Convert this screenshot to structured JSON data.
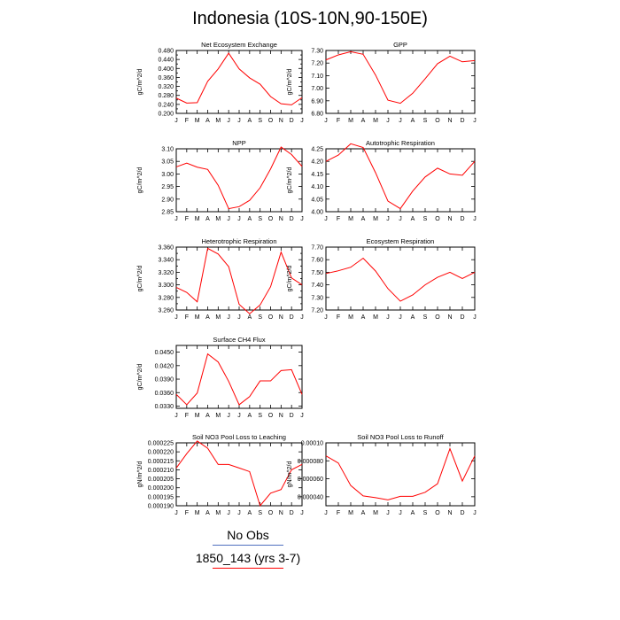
{
  "title": "Indonesia (10S-10N,90-150E)",
  "legend": {
    "entries": [
      {
        "label": "No Obs",
        "color": "#4f6fbf"
      },
      {
        "label": "1850_143 (yrs 3-7)",
        "color": "#ff0000"
      }
    ]
  },
  "months": [
    "J",
    "F",
    "M",
    "A",
    "M",
    "J",
    "J",
    "A",
    "S",
    "O",
    "N",
    "D",
    "J"
  ],
  "chart_data": [
    {
      "type": "line",
      "title": "Net Ecosystem Exchange",
      "ylabel": "gC/m^2/d",
      "ylim": [
        0.2,
        0.48
      ],
      "yticks": [
        "0.200",
        "0.220",
        "0.240",
        "0.260",
        "0.280",
        "0.300",
        "0.320",
        "0.340",
        "0.360",
        "0.380",
        "0.400",
        "0.420",
        "0.440",
        "0.460",
        "0.480"
      ],
      "ytick_values": [
        0.2,
        0.22,
        0.24,
        0.26,
        0.28,
        0.3,
        0.32,
        0.34,
        0.36,
        0.38,
        0.4,
        0.42,
        0.44,
        0.46,
        0.48
      ],
      "ytick_labeled": [
        true,
        false,
        true,
        false,
        true,
        false,
        true,
        false,
        true,
        false,
        true,
        false,
        true,
        false,
        true
      ],
      "series": [
        {
          "name": "1850_143 (yrs 3-7)",
          "color": "#ff0000",
          "values": [
            0.268,
            0.246,
            0.248,
            0.343,
            0.398,
            0.468,
            0.398,
            0.358,
            0.33,
            0.275,
            0.243,
            0.238,
            0.27
          ]
        }
      ]
    },
    {
      "type": "line",
      "title": "GPP",
      "ylabel": "gC/m^2/d",
      "ylim": [
        6.8,
        7.3
      ],
      "yticks": [
        "6.80",
        "6.90",
        "7.00",
        "7.10",
        "7.20",
        "7.30"
      ],
      "ytick_values": [
        6.8,
        6.9,
        7.0,
        7.1,
        7.2,
        7.3
      ],
      "ytick_labeled": [
        true,
        true,
        true,
        true,
        true,
        true
      ],
      "series": [
        {
          "name": "1850_143 (yrs 3-7)",
          "color": "#ff0000",
          "values": [
            7.225,
            7.265,
            7.29,
            7.27,
            7.105,
            6.905,
            6.88,
            6.96,
            7.075,
            7.195,
            7.255,
            7.21,
            7.22
          ]
        }
      ]
    },
    {
      "type": "line",
      "title": "NPP",
      "ylabel": "gC/m^2/d",
      "ylim": [
        2.85,
        3.1
      ],
      "yticks": [
        "2.85",
        "2.90",
        "2.95",
        "3.00",
        "3.05",
        "3.10"
      ],
      "ytick_values": [
        2.85,
        2.9,
        2.95,
        3.0,
        3.05,
        3.1
      ],
      "ytick_labeled": [
        true,
        true,
        true,
        true,
        true,
        true
      ],
      "series": [
        {
          "name": "1850_143 (yrs 3-7)",
          "color": "#ff0000",
          "values": [
            3.028,
            3.043,
            3.027,
            3.018,
            2.955,
            2.862,
            2.87,
            2.895,
            2.945,
            3.02,
            3.107,
            3.077,
            3.03
          ]
        }
      ]
    },
    {
      "type": "line",
      "title": "Autotrophic Respiration",
      "ylabel": "gC/m^2/d",
      "ylim": [
        4.0,
        4.25
      ],
      "yticks": [
        "4.00",
        "4.05",
        "4.10",
        "4.15",
        "4.20",
        "4.25"
      ],
      "ytick_values": [
        4.0,
        4.05,
        4.1,
        4.15,
        4.2,
        4.25
      ],
      "ytick_labeled": [
        true,
        true,
        true,
        true,
        true,
        true
      ],
      "series": [
        {
          "name": "1850_143 (yrs 3-7)",
          "color": "#ff0000",
          "values": [
            4.2,
            4.225,
            4.27,
            4.255,
            4.155,
            4.042,
            4.012,
            4.082,
            4.138,
            4.173,
            4.15,
            4.145,
            4.2
          ]
        }
      ]
    },
    {
      "type": "line",
      "title": "Heterotrophic Respiration",
      "ylabel": "gC/m^2/d",
      "ylim": [
        3.26,
        3.36
      ],
      "yticks": [
        "3.260",
        "3.270",
        "3.280",
        "3.290",
        "3.300",
        "3.310",
        "3.320",
        "3.330",
        "3.340",
        "3.350",
        "3.360"
      ],
      "ytick_values": [
        3.26,
        3.27,
        3.28,
        3.29,
        3.3,
        3.31,
        3.32,
        3.33,
        3.34,
        3.35,
        3.36
      ],
      "ytick_labeled": [
        true,
        false,
        true,
        false,
        true,
        false,
        true,
        false,
        true,
        false,
        true
      ],
      "series": [
        {
          "name": "1850_143 (yrs 3-7)",
          "color": "#ff0000",
          "values": [
            3.296,
            3.288,
            3.273,
            3.358,
            3.349,
            3.329,
            3.269,
            3.254,
            3.268,
            3.297,
            3.352,
            3.311,
            3.3
          ]
        }
      ]
    },
    {
      "type": "line",
      "title": "Ecosystem Respiration",
      "ylabel": "gC/m^2/d",
      "ylim": [
        7.2,
        7.7
      ],
      "yticks": [
        "7.20",
        "7.30",
        "7.40",
        "7.50",
        "7.60",
        "7.70"
      ],
      "ytick_values": [
        7.2,
        7.3,
        7.4,
        7.5,
        7.6,
        7.7
      ],
      "ytick_labeled": [
        true,
        true,
        true,
        true,
        true,
        true
      ],
      "series": [
        {
          "name": "1850_143 (yrs 3-7)",
          "color": "#ff0000",
          "values": [
            7.49,
            7.512,
            7.54,
            7.612,
            7.51,
            7.37,
            7.27,
            7.32,
            7.4,
            7.46,
            7.5,
            7.45,
            7.5
          ]
        }
      ]
    },
    {
      "type": "line",
      "title": "Surface CH4 Flux",
      "ylabel": "gC/m^2/d",
      "ylim": [
        0.0325,
        0.0465
      ],
      "yticks": [
        "0.0330",
        "0.0360",
        "0.0390",
        "0.0420",
        "0.0450"
      ],
      "ytick_values": [
        0.033,
        0.036,
        0.039,
        0.042,
        0.045
      ],
      "ytick_labeled": [
        true,
        true,
        true,
        true,
        true
      ],
      "series": [
        {
          "name": "1850_143 (yrs 3-7)",
          "color": "#ff0000",
          "values": [
            0.0356,
            0.0333,
            0.0359,
            0.0446,
            0.0428,
            0.0385,
            0.0333,
            0.0351,
            0.0386,
            0.0386,
            0.0409,
            0.0411,
            0.0356
          ]
        }
      ]
    },
    {
      "type": "line",
      "title": "Soil NO3 Pool Loss to Leaching",
      "ylabel": "gN/m^2/d",
      "ylim": [
        0.00019,
        0.000225
      ],
      "yticks": [
        "0.000190",
        "0.000195",
        "0.000200",
        "0.000205",
        "0.000210",
        "0.000215",
        "0.000220",
        "0.000225"
      ],
      "ytick_values": [
        0.00019,
        0.000195,
        0.0002,
        0.000205,
        0.00021,
        0.000215,
        0.00022,
        0.000225
      ],
      "ytick_labeled": [
        true,
        true,
        true,
        true,
        true,
        true,
        true,
        true
      ],
      "series": [
        {
          "name": "1850_143 (yrs 3-7)",
          "color": "#ff0000",
          "values": [
            0.000211,
            0.000219,
            0.000226,
            0.000222,
            0.000213,
            0.000213,
            0.000211,
            0.000209,
            0.00019,
            0.000197,
            0.000199,
            0.00021,
            0.000213
          ]
        }
      ]
    },
    {
      "type": "line",
      "title": "Soil NO3 Pool Loss to Runoff",
      "ylabel": "gN/m^2/d",
      "ylim": [
        3e-05,
        0.0001
      ],
      "yticks": [
        "0.000040",
        "0.000060",
        "0.000080",
        "0.00010"
      ],
      "ytick_values": [
        4e-05,
        6e-05,
        8e-05,
        0.0001
      ],
      "ytick_labeled": [
        true,
        true,
        true,
        true
      ],
      "series": [
        {
          "name": "1850_143 (yrs 3-7)",
          "color": "#ff0000",
          "values": [
            8.55e-05,
            7.75e-05,
            5.25e-05,
            4.1e-05,
            3.9e-05,
            3.65e-05,
            4.05e-05,
            4.05e-05,
            4.5e-05,
            5.45e-05,
            9.35e-05,
            5.75e-05,
            8.55e-05
          ]
        }
      ]
    }
  ]
}
